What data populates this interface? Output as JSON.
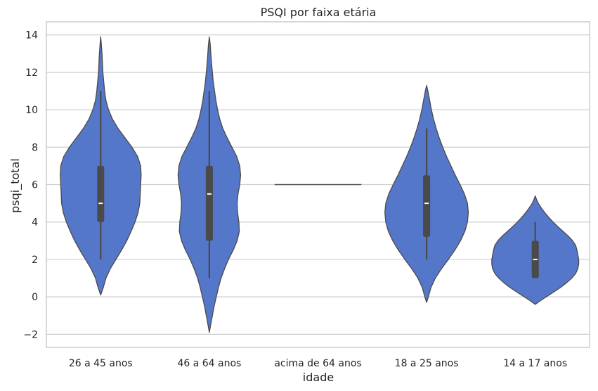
{
  "chart_data": {
    "type": "violin",
    "title": "PSQI por faixa etária",
    "xlabel": "idade",
    "ylabel": "psqi_total",
    "ylim": [
      -2.7,
      14.7
    ],
    "yticks": [
      -2,
      0,
      2,
      4,
      6,
      8,
      10,
      12,
      14
    ],
    "ytick_labels": [
      "−2",
      "0",
      "2",
      "4",
      "6",
      "8",
      "10",
      "12",
      "14"
    ],
    "grid": true,
    "colors": {
      "fill": "#5577c9",
      "stroke": "#4a4a4a",
      "box": "#4a4a4a",
      "median": "#ffffff",
      "grid": "#cccccc",
      "frame": "#cccccc"
    },
    "categories": [
      "26 a 45 anos",
      "46 a 64 anos",
      "acima de 64 anos",
      "18 a 25 anos",
      "14 a 17 anos"
    ],
    "violins": [
      {
        "category": "26 a 45 anos",
        "kde_min": 0.1,
        "kde_max": 13.9,
        "profile": [
          [
            0.1,
            0.0
          ],
          [
            0.5,
            0.06
          ],
          [
            1.0,
            0.12
          ],
          [
            1.5,
            0.22
          ],
          [
            2.0,
            0.35
          ],
          [
            2.5,
            0.48
          ],
          [
            3.0,
            0.6
          ],
          [
            3.5,
            0.7
          ],
          [
            4.0,
            0.79
          ],
          [
            4.5,
            0.86
          ],
          [
            5.0,
            0.9
          ],
          [
            5.5,
            0.91
          ],
          [
            6.0,
            0.92
          ],
          [
            6.5,
            0.93
          ],
          [
            7.0,
            0.92
          ],
          [
            7.5,
            0.85
          ],
          [
            8.0,
            0.72
          ],
          [
            8.5,
            0.56
          ],
          [
            9.0,
            0.4
          ],
          [
            9.5,
            0.27
          ],
          [
            10.0,
            0.18
          ],
          [
            10.5,
            0.12
          ],
          [
            11.0,
            0.09
          ],
          [
            11.5,
            0.07
          ],
          [
            12.0,
            0.05
          ],
          [
            12.5,
            0.04
          ],
          [
            13.0,
            0.03
          ],
          [
            13.5,
            0.015
          ],
          [
            13.9,
            0.0
          ]
        ],
        "whisker": [
          2,
          11
        ],
        "q1": 4,
        "median": 5,
        "q3": 7
      },
      {
        "category": "46 a 64 anos",
        "kde_min": -1.9,
        "kde_max": 13.9,
        "profile": [
          [
            -1.9,
            0.0
          ],
          [
            -1.5,
            0.03
          ],
          [
            -1.0,
            0.07
          ],
          [
            -0.5,
            0.11
          ],
          [
            0.0,
            0.16
          ],
          [
            0.5,
            0.21
          ],
          [
            1.0,
            0.27
          ],
          [
            1.5,
            0.35
          ],
          [
            2.0,
            0.44
          ],
          [
            2.5,
            0.55
          ],
          [
            3.0,
            0.64
          ],
          [
            3.5,
            0.69
          ],
          [
            4.0,
            0.68
          ],
          [
            4.5,
            0.65
          ],
          [
            5.0,
            0.64
          ],
          [
            5.5,
            0.66
          ],
          [
            6.0,
            0.7
          ],
          [
            6.5,
            0.72
          ],
          [
            7.0,
            0.7
          ],
          [
            7.5,
            0.63
          ],
          [
            8.0,
            0.52
          ],
          [
            8.5,
            0.41
          ],
          [
            9.0,
            0.31
          ],
          [
            9.5,
            0.24
          ],
          [
            10.0,
            0.19
          ],
          [
            10.5,
            0.15
          ],
          [
            11.0,
            0.12
          ],
          [
            11.5,
            0.09
          ],
          [
            12.0,
            0.07
          ],
          [
            12.5,
            0.05
          ],
          [
            13.0,
            0.035
          ],
          [
            13.5,
            0.02
          ],
          [
            13.9,
            0.0
          ]
        ],
        "whisker": [
          1,
          11
        ],
        "q1": 3,
        "median": 5.5,
        "q3": 7
      },
      {
        "category": "acima de 64 anos",
        "single_value": 6,
        "profile": [],
        "whisker": null,
        "q1": null,
        "median": 6,
        "q3": null
      },
      {
        "category": "18 a 25 anos",
        "kde_min": -0.3,
        "kde_max": 11.3,
        "profile": [
          [
            -0.3,
            0.0
          ],
          [
            0.0,
            0.04
          ],
          [
            0.5,
            0.1
          ],
          [
            1.0,
            0.2
          ],
          [
            1.5,
            0.34
          ],
          [
            2.0,
            0.5
          ],
          [
            2.5,
            0.65
          ],
          [
            3.0,
            0.78
          ],
          [
            3.5,
            0.88
          ],
          [
            4.0,
            0.94
          ],
          [
            4.5,
            0.96
          ],
          [
            5.0,
            0.94
          ],
          [
            5.5,
            0.87
          ],
          [
            6.0,
            0.77
          ],
          [
            6.5,
            0.66
          ],
          [
            7.0,
            0.56
          ],
          [
            7.5,
            0.46
          ],
          [
            8.0,
            0.37
          ],
          [
            8.5,
            0.29
          ],
          [
            9.0,
            0.22
          ],
          [
            9.5,
            0.16
          ],
          [
            10.0,
            0.11
          ],
          [
            10.5,
            0.07
          ],
          [
            11.0,
            0.03
          ],
          [
            11.3,
            0.0
          ]
        ],
        "whisker": [
          2,
          9
        ],
        "q1": 3.2,
        "median": 5,
        "q3": 6.5
      },
      {
        "category": "14 a 17 anos",
        "kde_min": -0.4,
        "kde_max": 5.4,
        "profile": [
          [
            -0.4,
            0.0
          ],
          [
            -0.2,
            0.12
          ],
          [
            0.0,
            0.25
          ],
          [
            0.25,
            0.42
          ],
          [
            0.5,
            0.58
          ],
          [
            0.75,
            0.72
          ],
          [
            1.0,
            0.84
          ],
          [
            1.25,
            0.93
          ],
          [
            1.5,
            0.98
          ],
          [
            1.75,
            1.0
          ],
          [
            2.0,
            1.0
          ],
          [
            2.25,
            0.98
          ],
          [
            2.5,
            0.96
          ],
          [
            2.75,
            0.93
          ],
          [
            3.0,
            0.86
          ],
          [
            3.25,
            0.76
          ],
          [
            3.5,
            0.64
          ],
          [
            3.75,
            0.52
          ],
          [
            4.0,
            0.41
          ],
          [
            4.25,
            0.31
          ],
          [
            4.5,
            0.22
          ],
          [
            4.75,
            0.14
          ],
          [
            5.0,
            0.07
          ],
          [
            5.2,
            0.03
          ],
          [
            5.4,
            0.0
          ]
        ],
        "whisker": [
          1,
          4
        ],
        "q1": 1,
        "median": 2,
        "q3": 3
      }
    ]
  }
}
